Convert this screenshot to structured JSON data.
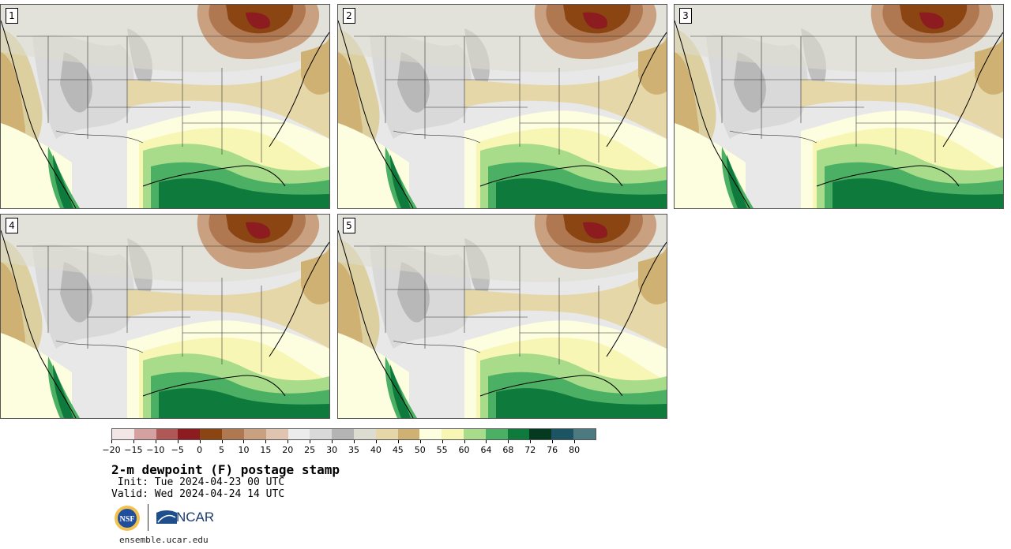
{
  "stamps": [
    {
      "label": "1"
    },
    {
      "label": "2"
    },
    {
      "label": "3"
    },
    {
      "label": "4"
    },
    {
      "label": "5"
    }
  ],
  "colorbar": {
    "colors": [
      "#f3e6e6",
      "#d4a0a0",
      "#b05858",
      "#8c1c20",
      "#8b4513",
      "#b07850",
      "#c9a080",
      "#e0c4b0",
      "#ececec",
      "#d9d9d9",
      "#b4b4b4",
      "#dcdcd0",
      "#e6d7a8",
      "#cfb173",
      "#fdfde0",
      "#f8f6b4",
      "#a8dc8a",
      "#4cb064",
      "#0e7a3c",
      "#053a20",
      "#1c5464",
      "#4d7a80"
    ],
    "tick_labels": [
      "−20",
      "−15",
      "−10",
      "−5",
      "0",
      "5",
      "10",
      "15",
      "20",
      "25",
      "30",
      "35",
      "40",
      "45",
      "50",
      "55",
      "60",
      "64",
      "68",
      "72",
      "76",
      "80"
    ]
  },
  "title": "2-m dewpoint (F) postage stamp",
  "init": " Init: Tue 2024-04-23 00 UTC",
  "valid": "Valid: Wed 2024-04-24 14 UTC",
  "logos": {
    "nsf": "NSF",
    "ncar": "NCAR"
  },
  "website": "ensemble.ucar.edu"
}
